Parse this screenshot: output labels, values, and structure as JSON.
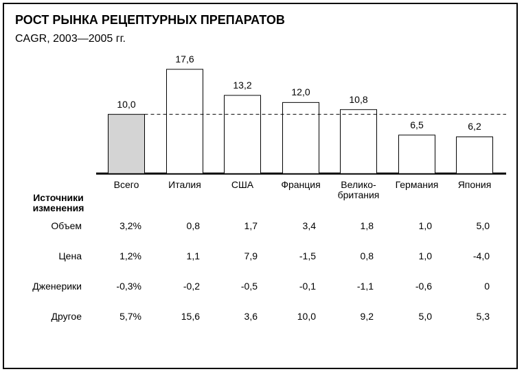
{
  "chart_data": {
    "type": "bar",
    "title": "РОСТ РЫНКА РЕЦЕПТУРНЫХ ПРЕПАРАТОВ",
    "subtitle": "CAGR, 2003—2005 гг.",
    "categories": [
      "Всего",
      "Италия",
      "США",
      "Франция",
      "Велико-\nбритания",
      "Германия",
      "Япония"
    ],
    "values": [
      10.0,
      17.6,
      13.2,
      12.0,
      10.8,
      6.5,
      6.2
    ],
    "value_labels": [
      "10,0",
      "17,6",
      "13,2",
      "12,0",
      "10,8",
      "6,5",
      "6,2"
    ],
    "colors": [
      "#d4d4d4",
      "#ffffff",
      "#ffffff",
      "#ffffff",
      "#ffffff",
      "#ffffff",
      "#ffffff"
    ],
    "ylim": [
      0,
      17.6
    ]
  },
  "table": {
    "title": "Источники\nизменения",
    "rows": [
      {
        "label": "Объем",
        "cells": [
          "3,2%",
          "0,8",
          "1,7",
          "3,4",
          "1,8",
          "1,0",
          "5,0"
        ]
      },
      {
        "label": "Цена",
        "cells": [
          "1,2%",
          "1,1",
          "7,9",
          "-1,5",
          "0,8",
          "1,0",
          "-4,0"
        ]
      },
      {
        "label": "Дженерики",
        "cells": [
          "-0,3%",
          "-0,2",
          "-0,5",
          "-0,1",
          "-1,1",
          "-0,6",
          "0"
        ]
      },
      {
        "label": "Другое",
        "cells": [
          "5,7%",
          "15,6",
          "3,6",
          "10,0",
          "9,2",
          "5,0",
          "5,3"
        ]
      }
    ]
  }
}
